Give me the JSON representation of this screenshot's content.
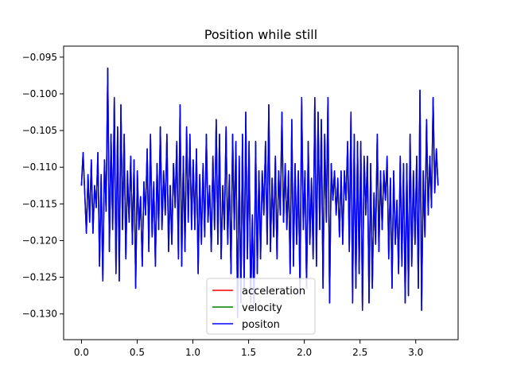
{
  "chart_data": {
    "type": "line",
    "title": "Position while still",
    "xlabel": "",
    "ylabel": "",
    "xlim": [
      -0.16,
      3.38
    ],
    "ylim": [
      -0.1335,
      -0.0935
    ],
    "x_ticks": [
      0.0,
      0.5,
      1.0,
      1.5,
      2.0,
      2.5,
      3.0
    ],
    "x_tick_labels": [
      "0.0",
      "0.5",
      "1.0",
      "1.5",
      "2.0",
      "2.5",
      "3.0"
    ],
    "y_ticks": [
      -0.095,
      -0.1,
      -0.105,
      -0.11,
      -0.115,
      -0.12,
      -0.125,
      -0.13
    ],
    "y_tick_labels": [
      "−0.095",
      "−0.100",
      "−0.105",
      "−0.110",
      "−0.115",
      "−0.120",
      "−0.125",
      "−0.130"
    ],
    "grid": false,
    "legend_position": "lower-center",
    "series": [
      {
        "name": "acceleration",
        "color": "#ff0000",
        "x_start": 0.0,
        "x_end": 3.2,
        "y": [
          -0.1125,
          -0.108,
          -0.1135,
          -0.119,
          -0.111,
          -0.1175,
          -0.109,
          -0.119,
          -0.1125,
          -0.1155,
          -0.108,
          -0.1235,
          -0.111,
          -0.1255,
          -0.109,
          -0.116,
          -0.0965,
          -0.1215,
          -0.1055,
          -0.1185,
          -0.1005,
          -0.1245,
          -0.1045,
          -0.1255,
          -0.1015,
          -0.1185,
          -0.1055,
          -0.1225,
          -0.1105,
          -0.1175,
          -0.1085,
          -0.1205,
          -0.109,
          -0.1265,
          -0.1105,
          -0.1185,
          -0.114,
          -0.1235,
          -0.112,
          -0.1165,
          -0.1075,
          -0.1215,
          -0.1055,
          -0.1195,
          -0.112,
          -0.1235,
          -0.1095,
          -0.1185,
          -0.1045,
          -0.1185,
          -0.1105,
          -0.1165,
          -0.1055,
          -0.1215,
          -0.1125,
          -0.1205,
          -0.1095,
          -0.1155,
          -0.1065,
          -0.1225,
          -0.1015,
          -0.1235,
          -0.1085,
          -0.1215,
          -0.1045,
          -0.1175,
          -0.1055,
          -0.1185,
          -0.109,
          -0.1185,
          -0.1075,
          -0.1245,
          -0.111,
          -0.1205,
          -0.1095,
          -0.1195,
          -0.1055,
          -0.1175,
          -0.1125,
          -0.1215,
          -0.1085,
          -0.1185,
          -0.1035,
          -0.1205,
          -0.1055,
          -0.1225,
          -0.1125,
          -0.1185,
          -0.1045,
          -0.1205,
          -0.111,
          -0.1245,
          -0.1055,
          -0.1185,
          -0.1065,
          -0.1305,
          -0.1085,
          -0.1285,
          -0.1055,
          -0.1265,
          -0.1025,
          -0.1225,
          -0.1065,
          -0.1285,
          -0.1165,
          -0.1295,
          -0.1065,
          -0.1245,
          -0.1105,
          -0.1225,
          -0.1105,
          -0.1165,
          -0.1065,
          -0.1205,
          -0.1015,
          -0.1215,
          -0.1115,
          -0.1195,
          -0.1085,
          -0.1225,
          -0.1105,
          -0.1165,
          -0.1025,
          -0.1175,
          -0.1095,
          -0.1185,
          -0.1105,
          -0.1245,
          -0.1035,
          -0.1235,
          -0.1095,
          -0.1205,
          -0.1105,
          -0.1275,
          -0.1005,
          -0.1185,
          -0.1105,
          -0.1265,
          -0.1065,
          -0.1205,
          -0.1115,
          -0.1225,
          -0.1005,
          -0.1235,
          -0.1025,
          -0.1185,
          -0.1035,
          -0.1265,
          -0.1055,
          -0.1175,
          -0.1005,
          -0.1285,
          -0.1095,
          -0.1145,
          -0.1105,
          -0.1165,
          -0.1115,
          -0.1195,
          -0.1105,
          -0.1205,
          -0.1105,
          -0.1145,
          -0.1065,
          -0.1215,
          -0.1025,
          -0.1285,
          -0.1055,
          -0.1265,
          -0.1065,
          -0.1245,
          -0.1065,
          -0.1295,
          -0.1085,
          -0.1165,
          -0.1085,
          -0.1285,
          -0.1095,
          -0.1265,
          -0.1135,
          -0.1205,
          -0.1055,
          -0.1215,
          -0.1105,
          -0.1185,
          -0.1105,
          -0.1145,
          -0.1085,
          -0.1225,
          -0.1115,
          -0.1265,
          -0.1105,
          -0.1205,
          -0.1145,
          -0.1245,
          -0.1085,
          -0.1235,
          -0.1095,
          -0.1285,
          -0.1095,
          -0.1275,
          -0.1055,
          -0.1235,
          -0.1105,
          -0.1205,
          -0.1085,
          -0.1265,
          -0.0995,
          -0.1295,
          -0.1105,
          -0.1195,
          -0.1035,
          -0.1165,
          -0.1085,
          -0.1155,
          -0.1005,
          -0.1135,
          -0.1075,
          -0.1125
        ]
      },
      {
        "name": "velocity",
        "color": "#008000",
        "x_start": 0.0,
        "x_end": 3.2,
        "y": [
          -0.1125,
          -0.108,
          -0.1135,
          -0.119,
          -0.111,
          -0.1175,
          -0.109,
          -0.119,
          -0.1125,
          -0.1155,
          -0.108,
          -0.1235,
          -0.111,
          -0.1255,
          -0.109,
          -0.116,
          -0.0965,
          -0.1215,
          -0.1055,
          -0.1185,
          -0.1005,
          -0.1245,
          -0.1045,
          -0.1255,
          -0.1015,
          -0.1185,
          -0.1055,
          -0.1225,
          -0.1105,
          -0.1175,
          -0.1085,
          -0.1205,
          -0.109,
          -0.1265,
          -0.1105,
          -0.1185,
          -0.114,
          -0.1235,
          -0.112,
          -0.1165,
          -0.1075,
          -0.1215,
          -0.1055,
          -0.1195,
          -0.112,
          -0.1235,
          -0.1095,
          -0.1185,
          -0.1045,
          -0.1185,
          -0.1105,
          -0.1165,
          -0.1055,
          -0.1215,
          -0.1125,
          -0.1205,
          -0.1095,
          -0.1155,
          -0.1065,
          -0.1225,
          -0.1015,
          -0.1235,
          -0.1085,
          -0.1215,
          -0.1045,
          -0.1175,
          -0.1055,
          -0.1185,
          -0.109,
          -0.1185,
          -0.1075,
          -0.1245,
          -0.111,
          -0.1205,
          -0.1095,
          -0.1195,
          -0.1055,
          -0.1175,
          -0.1125,
          -0.1215,
          -0.1085,
          -0.1185,
          -0.1035,
          -0.1205,
          -0.1055,
          -0.1225,
          -0.1125,
          -0.1185,
          -0.1045,
          -0.1205,
          -0.111,
          -0.1245,
          -0.1055,
          -0.1185,
          -0.1065,
          -0.1305,
          -0.1085,
          -0.1285,
          -0.1055,
          -0.1265,
          -0.1025,
          -0.1225,
          -0.1065,
          -0.1285,
          -0.1165,
          -0.1295,
          -0.1065,
          -0.1245,
          -0.1105,
          -0.1225,
          -0.1105,
          -0.1165,
          -0.1065,
          -0.1205,
          -0.1015,
          -0.1215,
          -0.1115,
          -0.1195,
          -0.1085,
          -0.1225,
          -0.1105,
          -0.1165,
          -0.1025,
          -0.1175,
          -0.1095,
          -0.1185,
          -0.1105,
          -0.1245,
          -0.1035,
          -0.1235,
          -0.1095,
          -0.1205,
          -0.1105,
          -0.1275,
          -0.1005,
          -0.1185,
          -0.1105,
          -0.1265,
          -0.1065,
          -0.1205,
          -0.1115,
          -0.1225,
          -0.1005,
          -0.1235,
          -0.1025,
          -0.1185,
          -0.1035,
          -0.1265,
          -0.1055,
          -0.1175,
          -0.1005,
          -0.1285,
          -0.1095,
          -0.1145,
          -0.1105,
          -0.1165,
          -0.1115,
          -0.1195,
          -0.1105,
          -0.1205,
          -0.1105,
          -0.1145,
          -0.1065,
          -0.1215,
          -0.1025,
          -0.1285,
          -0.1055,
          -0.1265,
          -0.1065,
          -0.1245,
          -0.1065,
          -0.1295,
          -0.1085,
          -0.1165,
          -0.1085,
          -0.1285,
          -0.1095,
          -0.1265,
          -0.1135,
          -0.1205,
          -0.1055,
          -0.1215,
          -0.1105,
          -0.1185,
          -0.1105,
          -0.1145,
          -0.1085,
          -0.1225,
          -0.1115,
          -0.1265,
          -0.1105,
          -0.1205,
          -0.1145,
          -0.1245,
          -0.1085,
          -0.1235,
          -0.1095,
          -0.1285,
          -0.1095,
          -0.1275,
          -0.1055,
          -0.1235,
          -0.1105,
          -0.1205,
          -0.1085,
          -0.1265,
          -0.0995,
          -0.1295,
          -0.1105,
          -0.1195,
          -0.1035,
          -0.1165,
          -0.1085,
          -0.1155,
          -0.1005,
          -0.1135,
          -0.1075,
          -0.1125
        ]
      },
      {
        "name": "positon",
        "color": "#0000ff",
        "x_start": 0.0,
        "x_end": 3.2,
        "y": [
          -0.1125,
          -0.108,
          -0.1135,
          -0.119,
          -0.111,
          -0.1175,
          -0.109,
          -0.119,
          -0.1125,
          -0.1155,
          -0.108,
          -0.1235,
          -0.111,
          -0.1255,
          -0.109,
          -0.116,
          -0.0965,
          -0.1215,
          -0.1055,
          -0.1185,
          -0.1005,
          -0.1245,
          -0.1045,
          -0.1255,
          -0.1015,
          -0.1185,
          -0.1055,
          -0.1225,
          -0.1105,
          -0.1175,
          -0.1085,
          -0.1205,
          -0.109,
          -0.1265,
          -0.1105,
          -0.1185,
          -0.114,
          -0.1235,
          -0.112,
          -0.1165,
          -0.1075,
          -0.1215,
          -0.1055,
          -0.1195,
          -0.112,
          -0.1235,
          -0.1095,
          -0.1185,
          -0.1045,
          -0.1185,
          -0.1105,
          -0.1165,
          -0.1055,
          -0.1215,
          -0.1125,
          -0.1205,
          -0.1095,
          -0.1155,
          -0.1065,
          -0.1225,
          -0.1015,
          -0.1235,
          -0.1085,
          -0.1215,
          -0.1045,
          -0.1175,
          -0.1055,
          -0.1185,
          -0.109,
          -0.1185,
          -0.1075,
          -0.1245,
          -0.111,
          -0.1205,
          -0.1095,
          -0.1195,
          -0.1055,
          -0.1175,
          -0.1125,
          -0.1215,
          -0.1085,
          -0.1185,
          -0.1035,
          -0.1205,
          -0.1055,
          -0.1225,
          -0.1125,
          -0.1185,
          -0.1045,
          -0.1205,
          -0.111,
          -0.1245,
          -0.1055,
          -0.1185,
          -0.1065,
          -0.1305,
          -0.1085,
          -0.1285,
          -0.1055,
          -0.1265,
          -0.1025,
          -0.1225,
          -0.1065,
          -0.1285,
          -0.1165,
          -0.1295,
          -0.1065,
          -0.1245,
          -0.1105,
          -0.1225,
          -0.1105,
          -0.1165,
          -0.1065,
          -0.1205,
          -0.1015,
          -0.1215,
          -0.1115,
          -0.1195,
          -0.1085,
          -0.1225,
          -0.1105,
          -0.1165,
          -0.1025,
          -0.1175,
          -0.1095,
          -0.1185,
          -0.1105,
          -0.1245,
          -0.1035,
          -0.1235,
          -0.1095,
          -0.1205,
          -0.1105,
          -0.1275,
          -0.1005,
          -0.1185,
          -0.1105,
          -0.1265,
          -0.1065,
          -0.1205,
          -0.1115,
          -0.1225,
          -0.1005,
          -0.1235,
          -0.1025,
          -0.1185,
          -0.1035,
          -0.1265,
          -0.1055,
          -0.1175,
          -0.1005,
          -0.1285,
          -0.1095,
          -0.1145,
          -0.1105,
          -0.1165,
          -0.1115,
          -0.1195,
          -0.1105,
          -0.1205,
          -0.1105,
          -0.1145,
          -0.1065,
          -0.1215,
          -0.1025,
          -0.1285,
          -0.1055,
          -0.1265,
          -0.1065,
          -0.1245,
          -0.1065,
          -0.1295,
          -0.1085,
          -0.1165,
          -0.1085,
          -0.1285,
          -0.1095,
          -0.1265,
          -0.1135,
          -0.1205,
          -0.1055,
          -0.1215,
          -0.1105,
          -0.1185,
          -0.1105,
          -0.1145,
          -0.1085,
          -0.1225,
          -0.1115,
          -0.1265,
          -0.1105,
          -0.1205,
          -0.1145,
          -0.1245,
          -0.1085,
          -0.1235,
          -0.1095,
          -0.1285,
          -0.1095,
          -0.1275,
          -0.1055,
          -0.1235,
          -0.1105,
          -0.1205,
          -0.1085,
          -0.1265,
          -0.0995,
          -0.1295,
          -0.1105,
          -0.1195,
          -0.1035,
          -0.1165,
          -0.1085,
          -0.1155,
          -0.1005,
          -0.1135,
          -0.1075,
          -0.1125
        ]
      }
    ]
  }
}
